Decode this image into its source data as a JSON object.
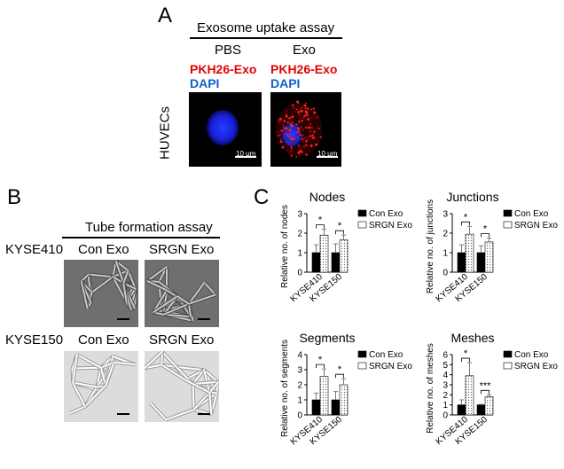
{
  "panel_a": {
    "letter": "A",
    "title": "Exosome uptake assay",
    "col_pbs": "PBS",
    "col_exo": "Exo",
    "stain_red": "PKH26-Exo",
    "stain_blue": "DAPI",
    "row_label": "HUVECs",
    "scale_bar": "10 μm",
    "colors": {
      "red_stain": "#e60000",
      "blue_stain": "#1060c8"
    }
  },
  "panel_b": {
    "letter": "B",
    "title": "Tube formation assay",
    "rows": [
      "KYSE410",
      "KYSE150"
    ],
    "cols": [
      "Con Exo",
      "SRGN Exo"
    ]
  },
  "panel_c": {
    "letter": "C"
  },
  "chart_data": [
    {
      "type": "bar",
      "title": "Nodes",
      "ylabel": "Relative no. of nodes",
      "categories": [
        "KYSE410",
        "KYSE150"
      ],
      "ylim": [
        0,
        3
      ],
      "yticks": [
        "0",
        "1",
        "2",
        "3"
      ],
      "series": [
        {
          "name": "Con Exo",
          "values": [
            1.0,
            1.0
          ],
          "errors": [
            0.4,
            0.45
          ],
          "fill": "black"
        },
        {
          "name": "SRGN Exo",
          "values": [
            1.9,
            1.65
          ],
          "errors": [
            0.3,
            0.25
          ],
          "fill": "dotted"
        }
      ],
      "significance": [
        "*",
        "*"
      ],
      "legend": "top-right"
    },
    {
      "type": "bar",
      "title": "Junctions",
      "ylabel": "Relative no. of junctions",
      "categories": [
        "KYSE410",
        "KYSE150"
      ],
      "ylim": [
        0,
        3
      ],
      "yticks": [
        "0",
        "1",
        "2",
        "3"
      ],
      "series": [
        {
          "name": "Con Exo",
          "values": [
            1.0,
            1.0
          ],
          "errors": [
            0.4,
            0.35
          ],
          "fill": "black"
        },
        {
          "name": "SRGN Exo",
          "values": [
            1.95,
            1.55
          ],
          "errors": [
            0.4,
            0.2
          ],
          "fill": "dotted"
        }
      ],
      "significance": [
        "*",
        "*"
      ],
      "legend": "top-right"
    },
    {
      "type": "bar",
      "title": "Segments",
      "ylabel": "Relative no. of segments",
      "categories": [
        "KYSE410",
        "KYSE150"
      ],
      "ylim": [
        0,
        4
      ],
      "yticks": [
        "0",
        "1",
        "2",
        "3",
        "4"
      ],
      "series": [
        {
          "name": "Con Exo",
          "values": [
            1.0,
            1.0
          ],
          "errors": [
            0.45,
            0.55
          ],
          "fill": "black"
        },
        {
          "name": "SRGN Exo",
          "values": [
            2.55,
            2.0
          ],
          "errors": [
            0.5,
            0.4
          ],
          "fill": "dotted"
        }
      ],
      "significance": [
        "*",
        "*"
      ],
      "legend": "top-right"
    },
    {
      "type": "bar",
      "title": "Meshes",
      "ylabel": "Relative no. of meshes",
      "categories": [
        "KYSE410",
        "KYSE150"
      ],
      "ylim": [
        0,
        6
      ],
      "yticks": [
        "0",
        "1",
        "2",
        "3",
        "4",
        "5",
        "6"
      ],
      "series": [
        {
          "name": "Con Exo",
          "values": [
            1.0,
            1.0
          ],
          "errors": [
            0.5,
            0.05
          ],
          "fill": "black"
        },
        {
          "name": "SRGN Exo",
          "values": [
            3.9,
            1.8
          ],
          "errors": [
            1.3,
            0.2
          ],
          "fill": "dotted"
        }
      ],
      "significance": [
        "*",
        "***"
      ],
      "legend": "top-right"
    }
  ]
}
